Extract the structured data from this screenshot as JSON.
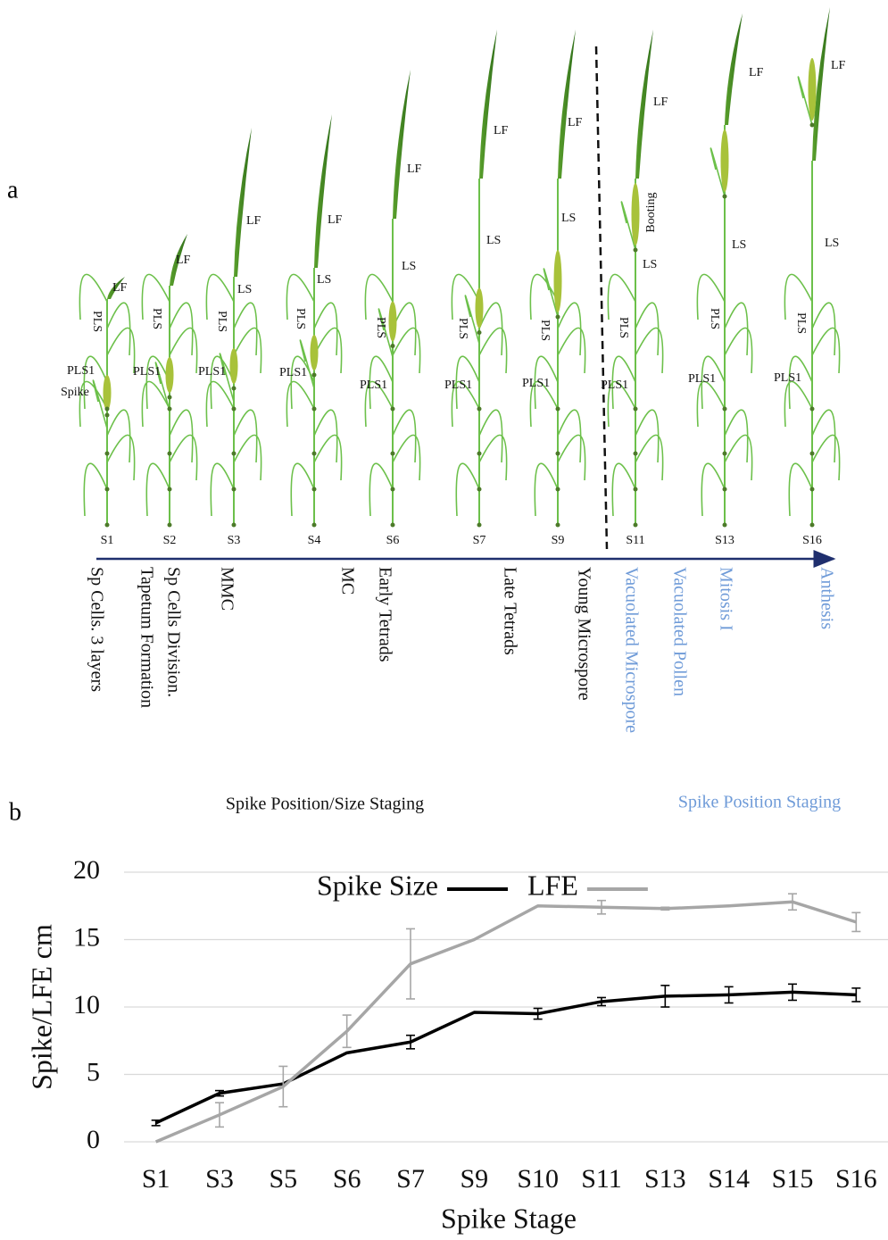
{
  "panel_a": {
    "label": "a",
    "plants": [
      {
        "stage": "S1",
        "labels": [
          "LF",
          "PLS",
          "PLS1",
          "Spike"
        ]
      },
      {
        "stage": "S2",
        "labels": [
          "LF",
          "PLS",
          "PLS1"
        ]
      },
      {
        "stage": "S3",
        "labels": [
          "LF",
          "LS",
          "PLS",
          "PLS1"
        ]
      },
      {
        "stage": "S4",
        "labels": [
          "LF",
          "LS",
          "PLS",
          "PLS1"
        ]
      },
      {
        "stage": "S6",
        "labels": [
          "LF",
          "LS",
          "PLS",
          "PLS1"
        ]
      },
      {
        "stage": "S7",
        "labels": [
          "LF",
          "LS",
          "PLS",
          "PLS1"
        ]
      },
      {
        "stage": "S9",
        "labels": [
          "LF",
          "LS",
          "PLS",
          "PLS1"
        ]
      },
      {
        "stage": "S11",
        "labels": [
          "LF",
          "Booting",
          "LS",
          "PLS",
          "PLS1"
        ]
      },
      {
        "stage": "S13",
        "labels": [
          "LF",
          "LS",
          "PLS",
          "PLS1"
        ]
      },
      {
        "stage": "S16",
        "labels": [
          "LF",
          "LS",
          "PLS",
          "PLS1"
        ]
      }
    ],
    "phases": [
      {
        "text": "Sp Cells. 3 layers",
        "color": "#111111"
      },
      {
        "text": "Tapetum Formation",
        "color": "#111111"
      },
      {
        "text": "Sp Cells Division.",
        "color": "#111111"
      },
      {
        "text": "MMC",
        "color": "#111111"
      },
      {
        "text": "MC",
        "color": "#111111"
      },
      {
        "text": "Early Tetrads",
        "color": "#111111"
      },
      {
        "text": "Late Tetrads",
        "color": "#111111"
      },
      {
        "text": "Young Microspore",
        "color": "#111111"
      },
      {
        "text": "Vacuolated Microspore",
        "color": "#6f9bd8"
      },
      {
        "text": "Vacuolated Pollen",
        "color": "#6f9bd8"
      },
      {
        "text": "Mitosis I",
        "color": "#6f9bd8"
      },
      {
        "text": "Anthesis",
        "color": "#6f9bd8"
      }
    ],
    "captions": [
      {
        "text": "Spike Position/Size Staging",
        "color": "#111111"
      },
      {
        "text": "Spike Position Staging",
        "color": "#6f9bd8"
      }
    ]
  },
  "chart_data": {
    "type": "line",
    "panel_label": "b",
    "x_label": "Spike Stage",
    "y_label": "Spike/LFE cm",
    "categories": [
      "S1",
      "S3",
      "S5",
      "S6",
      "S7",
      "S9",
      "S10",
      "S11",
      "S13",
      "S14",
      "S15",
      "S16"
    ],
    "series": [
      {
        "name": "Spike Size",
        "color": "#000000",
        "values": [
          1.4,
          3.6,
          4.3,
          6.6,
          7.4,
          9.6,
          9.5,
          10.4,
          10.8,
          10.9,
          11.1,
          10.9
        ],
        "errors": [
          0.2,
          0.2,
          null,
          null,
          0.5,
          null,
          0.4,
          0.3,
          0.8,
          0.6,
          0.6,
          0.5
        ]
      },
      {
        "name": "LFE",
        "color": "#a6a6a6",
        "values": [
          0,
          2.0,
          4.1,
          8.2,
          13.2,
          15,
          17.5,
          17.4,
          17.3,
          17.5,
          17.8,
          16.3
        ],
        "errors": [
          null,
          0.9,
          1.5,
          1.2,
          2.6,
          null,
          null,
          0.5,
          0.1,
          null,
          0.6,
          0.7
        ]
      }
    ],
    "ylim": [
      0,
      20
    ],
    "yticks": [
      0,
      5,
      10,
      15,
      20
    ],
    "grid": true,
    "legend": "top"
  }
}
